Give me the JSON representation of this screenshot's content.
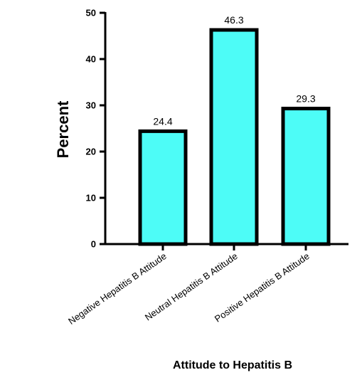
{
  "chart_data": {
    "type": "bar",
    "categories": [
      "Negative Hepatitis B Attitude",
      "Neutral Hepatitis B Attitude",
      "Positive Hepatitis B Attitude"
    ],
    "values": [
      24.4,
      46.3,
      29.3
    ],
    "data_labels": [
      "24.4",
      "46.3",
      "29.3"
    ],
    "xlabel": "Attitude to Hepatitis B",
    "ylabel": "Percent",
    "ylim": [
      0,
      50
    ],
    "yticks": [
      "0",
      "10",
      "20",
      "30",
      "40",
      "50"
    ],
    "bar_color": "#4dfcf7",
    "bar_edge_color": "#000000",
    "grid": false,
    "legend": "none"
  }
}
